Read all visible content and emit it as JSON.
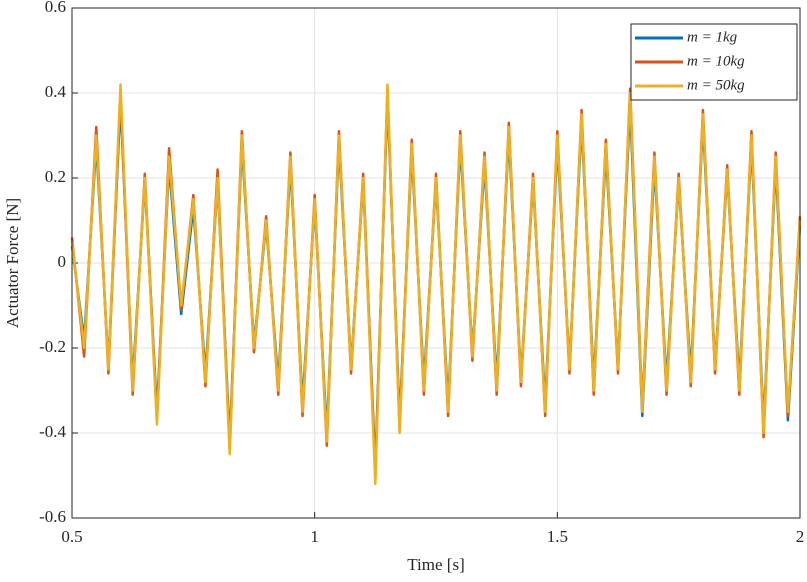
{
  "chart_data": {
    "type": "line",
    "xlabel": "Time [s]",
    "ylabel": "Actuator Force [N]",
    "x": [
      0.5,
      0.525,
      0.55,
      0.575,
      0.6,
      0.625,
      0.65,
      0.675,
      0.7,
      0.725,
      0.75,
      0.775,
      0.8,
      0.825,
      0.85,
      0.875,
      0.9,
      0.925,
      0.95,
      0.975,
      1,
      1.025,
      1.05,
      1.075,
      1.1,
      1.125,
      1.15,
      1.175,
      1.2,
      1.225,
      1.25,
      1.275,
      1.3,
      1.325,
      1.35,
      1.375,
      1.4,
      1.425,
      1.45,
      1.475,
      1.5,
      1.525,
      1.55,
      1.575,
      1.6,
      1.625,
      1.65,
      1.675,
      1.7,
      1.725,
      1.75,
      1.775,
      1.8,
      1.825,
      1.85,
      1.875,
      1.9,
      1.925,
      1.95,
      1.975,
      2
    ],
    "series": [
      {
        "name": "m = 1kg",
        "color": "#0072bd",
        "values": [
          0.04,
          -0.18,
          0.28,
          -0.24,
          0.38,
          -0.28,
          0.19,
          -0.35,
          0.23,
          -0.12,
          0.13,
          -0.26,
          0.19,
          -0.42,
          0.28,
          -0.19,
          0.09,
          -0.28,
          0.23,
          -0.33,
          0.14,
          -0.4,
          0.28,
          -0.24,
          0.19,
          -0.48,
          0.39,
          -0.37,
          0.26,
          -0.28,
          0.19,
          -0.33,
          0.28,
          -0.21,
          0.23,
          -0.28,
          0.3,
          -0.27,
          0.19,
          -0.33,
          0.28,
          -0.24,
          0.33,
          -0.28,
          0.26,
          -0.24,
          0.37,
          -0.36,
          0.23,
          -0.28,
          0.19,
          -0.26,
          0.33,
          -0.24,
          0.21,
          -0.28,
          0.28,
          -0.38,
          0.23,
          -0.37,
          0.09
        ]
      },
      {
        "name": "m = 10kg",
        "color": "#d95319",
        "values": [
          0.06,
          -0.22,
          0.32,
          -0.26,
          0.4,
          -0.31,
          0.21,
          -0.37,
          0.27,
          -0.11,
          0.16,
          -0.29,
          0.22,
          -0.44,
          0.31,
          -0.21,
          0.11,
          -0.31,
          0.26,
          -0.36,
          0.16,
          -0.43,
          0.31,
          -0.26,
          0.21,
          -0.5,
          0.41,
          -0.39,
          0.29,
          -0.31,
          0.21,
          -0.36,
          0.31,
          -0.23,
          0.26,
          -0.31,
          0.33,
          -0.29,
          0.21,
          -0.36,
          0.31,
          -0.26,
          0.36,
          -0.31,
          0.29,
          -0.26,
          0.41,
          -0.34,
          0.26,
          -0.31,
          0.21,
          -0.29,
          0.36,
          -0.26,
          0.23,
          -0.31,
          0.31,
          -0.41,
          0.26,
          -0.36,
          0.11
        ]
      },
      {
        "name": "m = 50kg",
        "color": "#edb120",
        "values": [
          0.05,
          -0.2,
          0.3,
          -0.25,
          0.42,
          -0.3,
          0.2,
          -0.38,
          0.25,
          -0.1,
          0.15,
          -0.28,
          0.2,
          -0.45,
          0.3,
          -0.2,
          0.1,
          -0.3,
          0.25,
          -0.35,
          0.15,
          -0.42,
          0.3,
          -0.25,
          0.2,
          -0.52,
          0.42,
          -0.4,
          0.28,
          -0.3,
          0.2,
          -0.35,
          0.3,
          -0.22,
          0.25,
          -0.3,
          0.32,
          -0.28,
          0.2,
          -0.35,
          0.3,
          -0.25,
          0.35,
          -0.3,
          0.28,
          -0.25,
          0.4,
          -0.35,
          0.25,
          -0.3,
          0.2,
          -0.28,
          0.35,
          -0.25,
          0.22,
          -0.3,
          0.3,
          -0.4,
          0.25,
          -0.35,
          0.1
        ]
      }
    ],
    "xlim": [
      0.5,
      2
    ],
    "xticks": [
      0.5,
      1,
      1.5,
      2
    ],
    "ylim": [
      -0.6,
      0.6
    ],
    "yticks": [
      -0.6,
      -0.4,
      -0.2,
      0,
      0.2,
      0.4,
      0.6
    ],
    "grid": true,
    "legend": "top-right"
  }
}
